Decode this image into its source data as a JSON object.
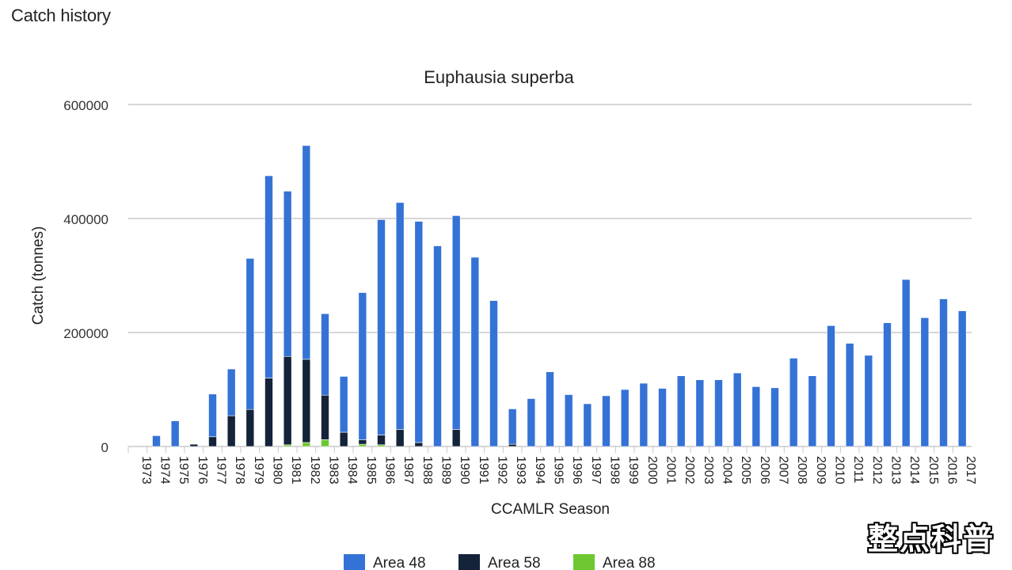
{
  "page": {
    "heading": "Catch history"
  },
  "watermark": "整点科普",
  "colors": {
    "area48": "#3572d6",
    "area58": "#14233a",
    "area88": "#6cc731",
    "grid": "#c8c8c8"
  },
  "chart_data": {
    "type": "bar",
    "stacked": true,
    "title": "Euphausia superba",
    "xlabel": "CCAMLR Season",
    "ylabel": "Catch (tonnes)",
    "ylim": [
      0,
      600000
    ],
    "yticks": [
      0,
      200000,
      400000,
      600000
    ],
    "grid": true,
    "legend_position": "bottom",
    "categories": [
      "1973",
      "1974",
      "1975",
      "1976",
      "1977",
      "1978",
      "1979",
      "1980",
      "1981",
      "1982",
      "1983",
      "1984",
      "1985",
      "1986",
      "1987",
      "1988",
      "1989",
      "1990",
      "1991",
      "1992",
      "1993",
      "1994",
      "1995",
      "1996",
      "1997",
      "1998",
      "1999",
      "2000",
      "2001",
      "2002",
      "2003",
      "2004",
      "2005",
      "2006",
      "2007",
      "2008",
      "2009",
      "2010",
      "2011",
      "2012",
      "2013",
      "2014",
      "2015",
      "2016",
      "2017"
    ],
    "series": [
      {
        "name": "Area 48",
        "color": "#3572d6",
        "values": [
          0,
          19000,
          45000,
          0,
          75000,
          82000,
          265000,
          355000,
          290000,
          375000,
          143000,
          98000,
          258000,
          378000,
          398000,
          388000,
          352000,
          375000,
          332000,
          256000,
          62000,
          84000,
          131000,
          91000,
          75000,
          89000,
          100000,
          111000,
          102000,
          124000,
          117000,
          117000,
          129000,
          105000,
          103000,
          155000,
          124000,
          212000,
          181000,
          160000,
          217000,
          293000,
          226000,
          259000,
          238000
        ]
      },
      {
        "name": "Area 58",
        "color": "#14233a",
        "values": [
          0,
          0,
          0,
          4000,
          17000,
          54000,
          65000,
          120000,
          155000,
          146000,
          78000,
          25000,
          8000,
          17000,
          30000,
          7000,
          0,
          30000,
          0,
          0,
          4000,
          0,
          0,
          0,
          0,
          0,
          0,
          0,
          0,
          0,
          0,
          0,
          0,
          0,
          0,
          0,
          0,
          0,
          0,
          0,
          0,
          0,
          0,
          0,
          0
        ]
      },
      {
        "name": "Area 88",
        "color": "#6cc731",
        "values": [
          0,
          0,
          0,
          0,
          0,
          0,
          0,
          0,
          3000,
          7000,
          12000,
          0,
          4000,
          3000,
          0,
          0,
          0,
          0,
          0,
          0,
          0,
          0,
          0,
          0,
          0,
          0,
          0,
          0,
          0,
          0,
          0,
          0,
          0,
          0,
          0,
          0,
          0,
          0,
          0,
          0,
          0,
          0,
          0,
          0,
          0
        ]
      }
    ]
  }
}
